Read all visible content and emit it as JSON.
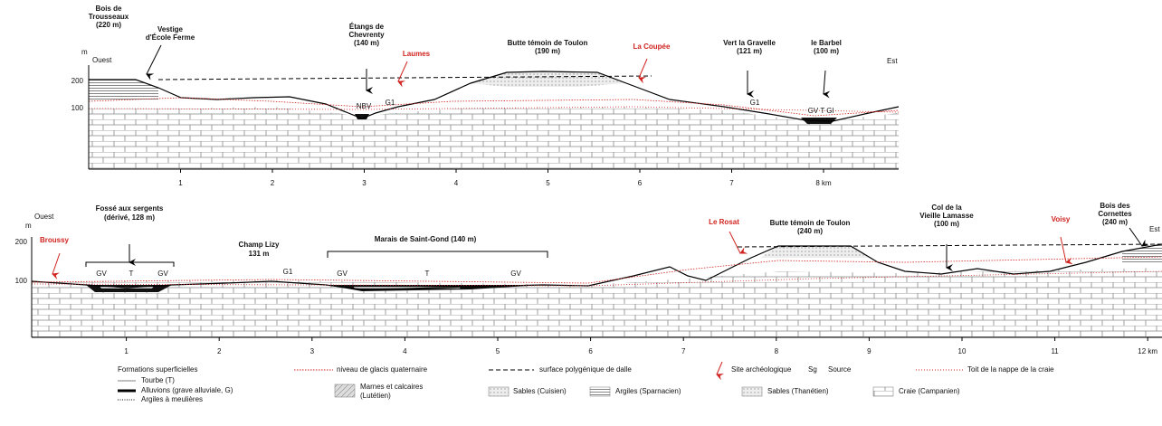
{
  "top_profile": {
    "unit": "m",
    "west": "Ouest",
    "east": "Est",
    "yticks": [
      "200",
      "100"
    ],
    "xticks": [
      "1",
      "2",
      "3",
      "4",
      "5",
      "6",
      "7",
      "8 km"
    ],
    "places": [
      {
        "name": "Bois de",
        "name2": "Trousseaux",
        "altitude": "(220 m)"
      },
      {
        "name": "Vestige",
        "name2": "d'École Ferme"
      },
      {
        "name": "Étangs de",
        "name2": "Chevrenty",
        "altitude": "(140 m)"
      },
      {
        "name": "Butte témoin de Toulon",
        "altitude": "(190 m)"
      },
      {
        "name": "Vert la Gravelle",
        "altitude": "(121 m)"
      },
      {
        "name": "le Barbel",
        "altitude": "(100 m)"
      }
    ],
    "villages": [
      "Laumes",
      "La Coupée"
    ],
    "marks": [
      "NBV",
      "G1",
      "G1",
      "GV T Gl"
    ]
  },
  "bottom_profile": {
    "unit": "m",
    "west": "Ouest",
    "east": "Est",
    "yticks": [
      "200",
      "100"
    ],
    "xticks": [
      "1",
      "2",
      "3",
      "4",
      "5",
      "6",
      "7",
      "8",
      "9",
      "10",
      "11",
      "12 km"
    ],
    "places": [
      {
        "name": "Fossé aux sergents",
        "altitude": "(dérivé, 128 m)"
      },
      {
        "name": "Champ Lizy",
        "altitude": "131 m"
      },
      {
        "name": "Marais de Saint-Gond (140 m)"
      },
      {
        "name": "Butte témoin de Toulon",
        "altitude": "(240 m)"
      },
      {
        "name": "Col de la",
        "name2": "Vieille Lamasse",
        "altitude": "(100 m)"
      },
      {
        "name": "Bois des",
        "name2": "Cornettes",
        "altitude": "(240 m)"
      }
    ],
    "villages": [
      "Broussy",
      "Le Rosat",
      "Voisy"
    ],
    "marks": [
      "GV",
      "T",
      "GV",
      "G1",
      "GV",
      "T",
      "GV"
    ]
  },
  "legend": {
    "superficial": "Formations superficielles",
    "items": [
      "Tourbe (T)",
      "Alluvions (grave alluviale, G)",
      "Argiles à meulières"
    ],
    "lines": [
      "niveau de glacis quaternaire",
      "surface polygénique de dalle",
      "Site archéologique",
      "Source",
      "Toit de la nappe de la craie"
    ],
    "source_symbol": "Sg",
    "bedrock": [
      "Marnes et calcaires",
      "(Lutétien)",
      "Sables (Cuisien)",
      "Argiles (Sparnacien)",
      "Sables (Thanétien)",
      "Craie (Campanien)"
    ]
  }
}
